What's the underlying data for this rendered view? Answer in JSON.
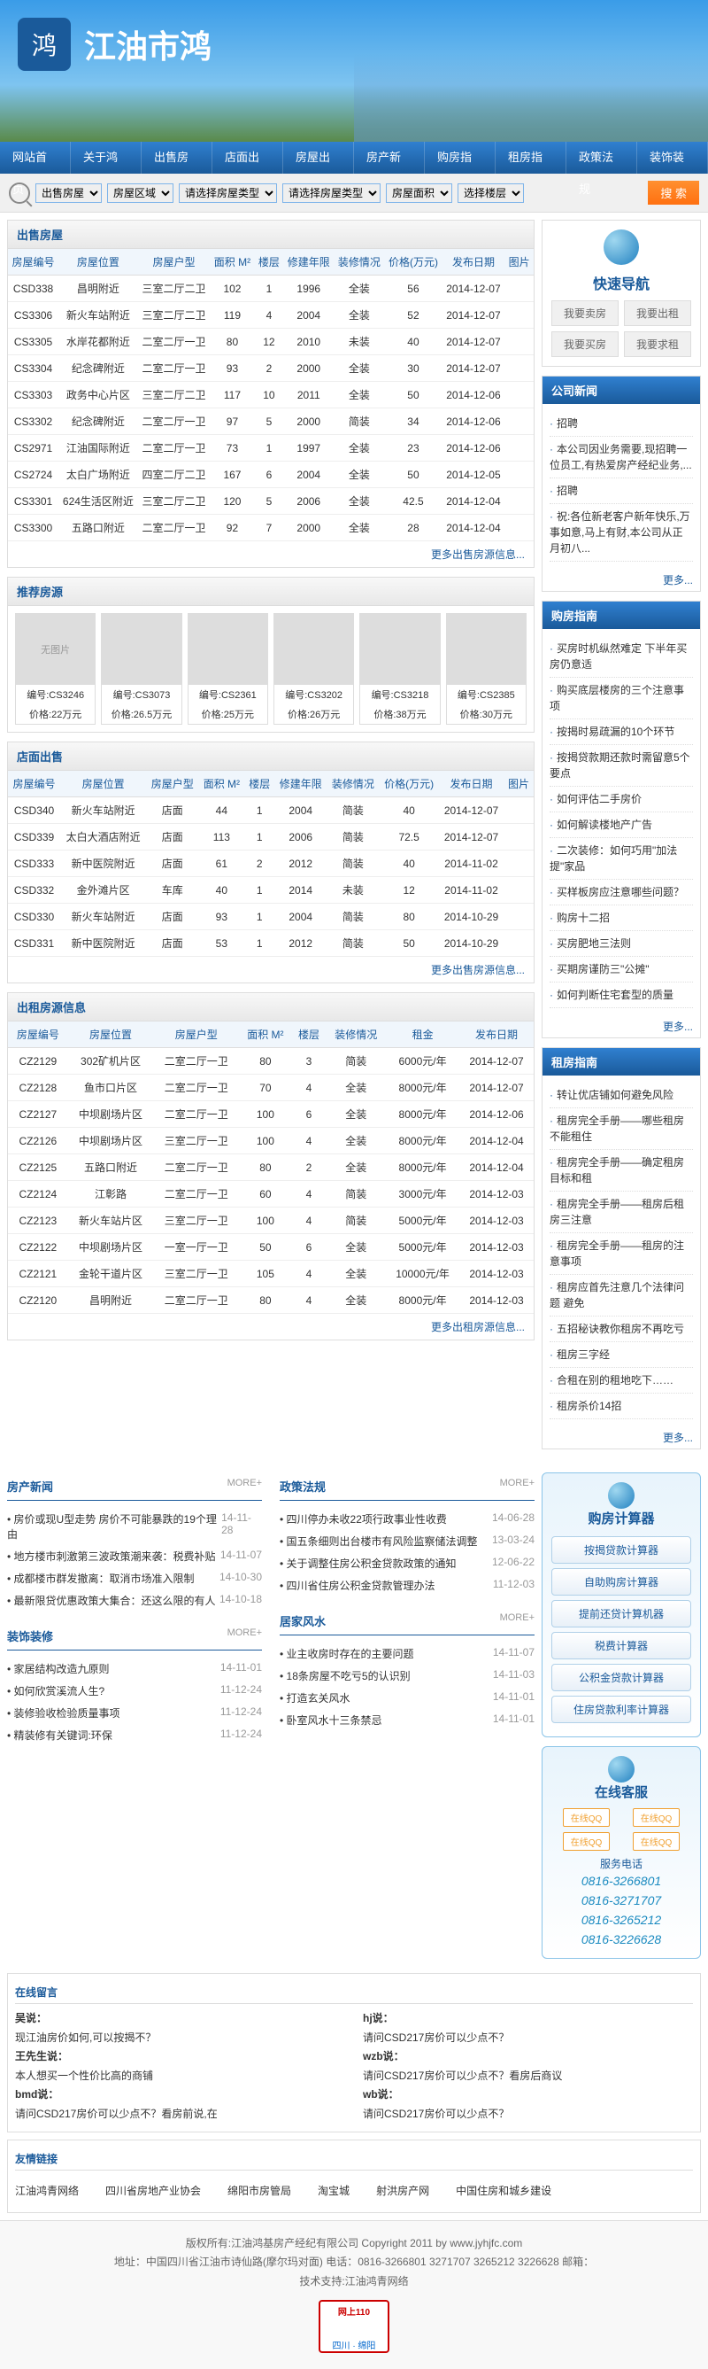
{
  "site": {
    "title": "江油市鸿",
    "logo_char": "鸿"
  },
  "nav": [
    "网站首页",
    "关于鸿基",
    "出售房屋",
    "店面出售",
    "房屋出租",
    "房产新闻",
    "购房指南",
    "租房指南",
    "政策法规",
    "装饰装修"
  ],
  "search": {
    "opts": [
      "出售房屋",
      "房屋区域",
      "请选择房屋类型",
      "请选择房屋类型",
      "房屋面积",
      "选择楼层"
    ],
    "btn": "搜 索"
  },
  "sale": {
    "title": "出售房屋",
    "cols": [
      "房屋编号",
      "房屋位置",
      "房屋户型",
      "面积 M²",
      "楼层",
      "修建年限",
      "装修情况",
      "价格(万元)",
      "发布日期",
      "图片"
    ],
    "rows": [
      [
        "CSD338",
        "昌明附近",
        "三室二厅二卫",
        "102",
        "1",
        "1996",
        "全装",
        "56",
        "2014-12-07",
        ""
      ],
      [
        "CS3306",
        "新火车站附近",
        "三室二厅二卫",
        "119",
        "4",
        "2004",
        "全装",
        "52",
        "2014-12-07",
        ""
      ],
      [
        "CS3305",
        "水岸花都附近",
        "二室二厅一卫",
        "80",
        "12",
        "2010",
        "未装",
        "40",
        "2014-12-07",
        ""
      ],
      [
        "CS3304",
        "纪念碑附近",
        "二室二厅一卫",
        "93",
        "2",
        "2000",
        "全装",
        "30",
        "2014-12-07",
        ""
      ],
      [
        "CS3303",
        "政务中心片区",
        "三室二厅二卫",
        "117",
        "10",
        "2011",
        "全装",
        "50",
        "2014-12-06",
        ""
      ],
      [
        "CS3302",
        "纪念碑附近",
        "二室二厅一卫",
        "97",
        "5",
        "2000",
        "简装",
        "34",
        "2014-12-06",
        ""
      ],
      [
        "CS2971",
        "江油国际附近",
        "二室二厅一卫",
        "73",
        "1",
        "1997",
        "全装",
        "23",
        "2014-12-06",
        ""
      ],
      [
        "CS2724",
        "太白广场附近",
        "四室二厅二卫",
        "167",
        "6",
        "2004",
        "全装",
        "50",
        "2014-12-05",
        ""
      ],
      [
        "CS3301",
        "624生活区附近",
        "三室二厅二卫",
        "120",
        "5",
        "2006",
        "全装",
        "42.5",
        "2014-12-04",
        ""
      ],
      [
        "CS3300",
        "五路口附近",
        "二室二厅一卫",
        "92",
        "7",
        "2000",
        "全装",
        "28",
        "2014-12-04",
        ""
      ]
    ],
    "more": "更多出售房源信息..."
  },
  "rec": {
    "title": "推荐房源",
    "items": [
      {
        "id": "CS3246",
        "price": "22万元",
        "noimg": "无图片"
      },
      {
        "id": "CS3073",
        "price": "26.5万元"
      },
      {
        "id": "CS2361",
        "price": "25万元"
      },
      {
        "id": "CS3202",
        "price": "26万元"
      },
      {
        "id": "CS3218",
        "price": "38万元"
      },
      {
        "id": "CS2385",
        "price": "30万元"
      }
    ]
  },
  "shop": {
    "title": "店面出售",
    "cols": [
      "房屋编号",
      "房屋位置",
      "房屋户型",
      "面积 M²",
      "楼层",
      "修建年限",
      "装修情况",
      "价格(万元)",
      "发布日期",
      "图片"
    ],
    "rows": [
      [
        "CSD340",
        "新火车站附近",
        "店面",
        "44",
        "1",
        "2004",
        "简装",
        "40",
        "2014-12-07",
        ""
      ],
      [
        "CSD339",
        "太白大酒店附近",
        "店面",
        "113",
        "1",
        "2006",
        "简装",
        "72.5",
        "2014-12-07",
        ""
      ],
      [
        "CSD333",
        "新中医院附近",
        "店面",
        "61",
        "2",
        "2012",
        "简装",
        "40",
        "2014-11-02",
        ""
      ],
      [
        "CSD332",
        "金外滩片区",
        "车库",
        "40",
        "1",
        "2014",
        "未装",
        "12",
        "2014-11-02",
        ""
      ],
      [
        "CSD330",
        "新火车站附近",
        "店面",
        "93",
        "1",
        "2004",
        "简装",
        "80",
        "2014-10-29",
        ""
      ],
      [
        "CSD331",
        "新中医院附近",
        "店面",
        "53",
        "1",
        "2012",
        "简装",
        "50",
        "2014-10-29",
        ""
      ]
    ],
    "more": "更多出售房源信息..."
  },
  "rent": {
    "title": "出租房源信息",
    "cols": [
      "房屋编号",
      "房屋位置",
      "房屋户型",
      "面积 M²",
      "楼层",
      "装修情况",
      "租金",
      "发布日期"
    ],
    "rows": [
      [
        "CZ2129",
        "302矿机片区",
        "二室二厅一卫",
        "80",
        "3",
        "简装",
        "6000元/年",
        "2014-12-07"
      ],
      [
        "CZ2128",
        "鱼市口片区",
        "二室二厅一卫",
        "70",
        "4",
        "全装",
        "8000元/年",
        "2014-12-07"
      ],
      [
        "CZ2127",
        "中坝剧场片区",
        "二室二厅一卫",
        "100",
        "6",
        "全装",
        "8000元/年",
        "2014-12-06"
      ],
      [
        "CZ2126",
        "中坝剧场片区",
        "三室二厅一卫",
        "100",
        "4",
        "全装",
        "8000元/年",
        "2014-12-04"
      ],
      [
        "CZ2125",
        "五路口附近",
        "二室二厅一卫",
        "80",
        "2",
        "全装",
        "8000元/年",
        "2014-12-04"
      ],
      [
        "CZ2124",
        "江彰路",
        "二室二厅一卫",
        "60",
        "4",
        "简装",
        "3000元/年",
        "2014-12-03"
      ],
      [
        "CZ2123",
        "新火车站片区",
        "三室二厅一卫",
        "100",
        "4",
        "简装",
        "5000元/年",
        "2014-12-03"
      ],
      [
        "CZ2122",
        "中坝剧场片区",
        "一室一厅一卫",
        "50",
        "6",
        "全装",
        "5000元/年",
        "2014-12-03"
      ],
      [
        "CZ2121",
        "金轮干道片区",
        "三室二厅一卫",
        "105",
        "4",
        "全装",
        "10000元/年",
        "2014-12-03"
      ],
      [
        "CZ2120",
        "昌明附近",
        "二室二厅一卫",
        "80",
        "4",
        "全装",
        "8000元/年",
        "2014-12-03"
      ]
    ],
    "more": "更多出租房源信息..."
  },
  "quicknav": {
    "title": "快速导航",
    "btns": [
      "我要卖房",
      "我要出租",
      "我要买房",
      "我要求租"
    ]
  },
  "company_news": {
    "title": "公司新闻",
    "items": [
      "招聘",
      "本公司因业务需要,现招聘一位员工,有热爱房产经纪业务,...",
      "招聘",
      "祝:各位新老客户新年快乐,万事如意,马上有财,本公司从正月初八..."
    ],
    "more": "更多..."
  },
  "buy_guide": {
    "title": "购房指南",
    "items": [
      "买房时机纵然难定 下半年买房仍意适",
      "购买底层楼房的三个注意事项",
      "按揭时易疏漏的10个环节",
      "按揭贷款期还款时需留意5个要点",
      "如何评估二手房价",
      "如何解读楼地产广告",
      "二次装修：如何巧用\"加法提\"家品",
      "买样板房应注意哪些问题？",
      "购房十二招",
      "买房肥地三法则",
      "买期房谨防三\"公摊\"",
      "如何判断住宅套型的质量"
    ],
    "more": "更多..."
  },
  "rent_guide": {
    "title": "租房指南",
    "items": [
      "转让优店铺如何避免风险",
      "租房完全手册——哪些租房不能租住",
      "租房完全手册——确定租房目标和租",
      "租房完全手册——租房后租房三注意",
      "租房完全手册——租房的注意事项",
      "租房应首先注意几个法律问题 避免",
      "五招秘诀教你租房不再吃亏",
      "租房三字经",
      "合租在别的租地吃下……",
      "租房杀价14招"
    ],
    "more": "更多..."
  },
  "bottom_news": {
    "property": {
      "title": "房产新闻",
      "more": "MORE+",
      "items": [
        {
          "t": "房价或现U型走势 房价不可能暴跌的19个理由",
          "d": "14-11-28"
        },
        {
          "t": "地方楼市刺激第三波政策潮来袭：税费补贴",
          "d": "14-11-07"
        },
        {
          "t": "成都楼市群发撤离：取消市场准入限制",
          "d": "14-10-30"
        },
        {
          "t": "最新限贷优惠政策大集合：还这么限的有人",
          "d": "14-10-18"
        }
      ]
    },
    "policy": {
      "title": "政策法规",
      "more": "MORE+",
      "items": [
        {
          "t": "四川停办未收22项行政事业性收费",
          "d": "14-06-28"
        },
        {
          "t": "国五条细则出台楼市有风险监察储法调整",
          "d": "13-03-24"
        },
        {
          "t": "关于调整住房公积金贷款政策的通知",
          "d": "12-06-22"
        },
        {
          "t": "四川省住房公积金贷款管理办法",
          "d": "11-12-03"
        }
      ]
    },
    "decor": {
      "title": "装饰装修",
      "more": "MORE+",
      "items": [
        {
          "t": "家居结构改造九原则",
          "d": "14-11-01"
        },
        {
          "t": "如何欣赏溪流人生?",
          "d": "11-12-24"
        },
        {
          "t": "装修验收检验质量事项",
          "d": "11-12-24"
        },
        {
          "t": "精装修有关键词:环保",
          "d": "11-12-24"
        }
      ]
    },
    "fengshui": {
      "title": "居家风水",
      "more": "MORE+",
      "items": [
        {
          "t": "业主收房时存在的主要问题",
          "d": "14-11-07"
        },
        {
          "t": "18条房屋不吃亏5的认识别",
          "d": "14-11-03"
        },
        {
          "t": "打造玄关风水",
          "d": "14-11-01"
        },
        {
          "t": "卧室风水十三条禁忌",
          "d": "14-11-01"
        }
      ]
    }
  },
  "calc": {
    "title": "购房计算器",
    "btns": [
      "按揭贷款计算器",
      "自助购房计算器",
      "提前还贷计算机器",
      "税费计算器",
      "公积金贷款计算器",
      "住房贷款利率计算器"
    ]
  },
  "service": {
    "title": "在线客服",
    "qq": "在线QQ",
    "phone_label": "服务电话",
    "phones": [
      "0816-3266801",
      "0816-3271707",
      "0816-3265212",
      "0816-3226628"
    ]
  },
  "msg": {
    "title": "在线留言",
    "left": [
      {
        "u": "吴说：",
        "t": "现江油房价如何,可以按揭不？"
      },
      {
        "u": "王先生说：",
        "t": "本人想买一个性价比高的商铺"
      },
      {
        "u": "bmd说：",
        "t": "请问CSD217房价可以少点不？看房前说,在"
      }
    ],
    "right": [
      {
        "u": "hj说：",
        "t": "请问CSD217房价可以少点不？"
      },
      {
        "u": "wzb说：",
        "t": "请问CSD217房价可以少点不？看房后商议"
      },
      {
        "u": "wb说：",
        "t": "请问CSD217房价可以少点不？"
      }
    ]
  },
  "links": {
    "title": "友情链接",
    "items": [
      "江油鸿青网络",
      "四川省房地产业协会",
      "绵阳市房管局",
      "淘宝城",
      "射洪房产网",
      "中国住房和城乡建设"
    ]
  },
  "footer": {
    "copyright": "版权所有:江油鸿基房产经纪有限公司 Copyright 2011 by www.jyhjfc.com",
    "addr": "地址：中国四川省江油市诗仙路(摩尔玛对面)  电话：0816-3266801 3271707 3265212 3226628 邮箱：",
    "tech": "技术支持:江油鸿青网络",
    "badge": "网上110",
    "badge2": "四川 · 绵阳"
  }
}
